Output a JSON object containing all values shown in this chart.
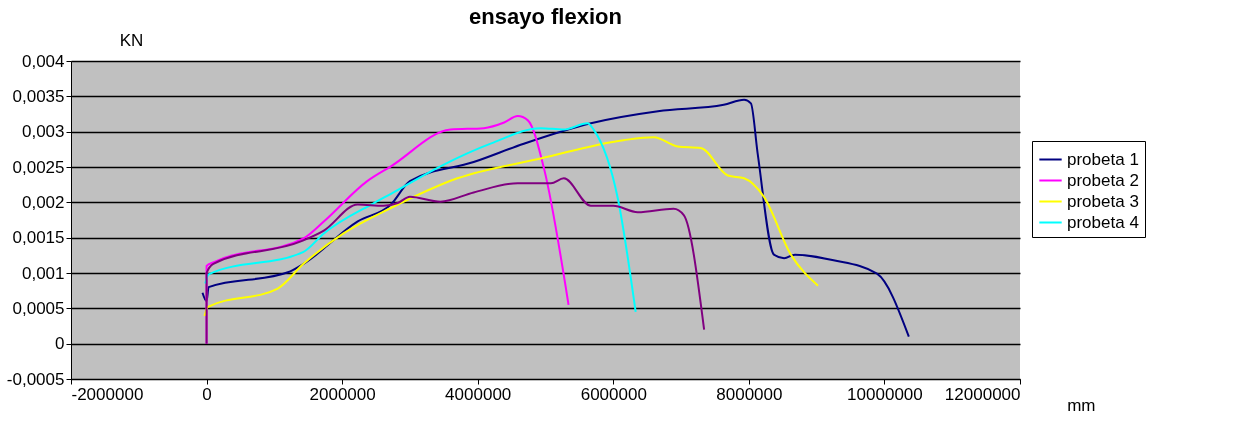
{
  "chart_data": {
    "type": "line",
    "title": "ensayo flexion",
    "xlabel": "mm",
    "ylabel": "KN",
    "xlim": [
      -2000000,
      12000000
    ],
    "xticks": [
      -2000000,
      0,
      2000000,
      4000000,
      6000000,
      8000000,
      10000000,
      12000000
    ],
    "ylim": [
      -0.0005,
      0.004
    ],
    "yticks": [
      {
        "value": -0.0005,
        "label": "-0,0005"
      },
      0,
      {
        "value": 0.0005,
        "label": "0,0005"
      },
      {
        "value": 0.001,
        "label": "0,001"
      },
      {
        "value": 0.0015,
        "label": "0,0015"
      },
      {
        "value": 0.002,
        "label": "0,002"
      },
      {
        "value": 0.0025,
        "label": "0,0025"
      },
      {
        "value": 0.003,
        "label": "0,003"
      },
      {
        "value": 0.0035,
        "label": "0,0035"
      },
      {
        "value": 0.004,
        "label": "0,004"
      }
    ],
    "grid": "y",
    "legend": "right",
    "series": [
      {
        "name": "probeta 1",
        "color": "#000080",
        "x": [
          -60000,
          0,
          30000,
          1200000,
          1430000,
          2230000,
          2720000,
          3000000,
          3940000,
          4680000,
          5670000,
          6660000,
          7630000,
          7930000,
          8030000,
          8130000,
          8370000,
          8520000,
          8680000,
          9250000,
          9890000,
          10360000
        ],
        "values": [
          0.00072,
          0.0006,
          0.0008,
          0.00101,
          0.00113,
          0.00173,
          0.00197,
          0.0023,
          0.00257,
          0.00283,
          0.00312,
          0.00329,
          0.00338,
          0.00345,
          0.0034,
          0.00269,
          0.00126,
          0.00121,
          0.00126,
          0.00118,
          0.00099,
          0.0001
        ]
      },
      {
        "name": "probeta 2",
        "color": "#ff00ff",
        "x": [
          0,
          0,
          100000,
          1430000,
          1730000,
          2370000,
          2720000,
          3600000,
          4090000,
          4390000,
          4590000,
          4740000,
          4980000,
          5340000
        ],
        "values": [
          0,
          0.0011,
          0.00115,
          0.00149,
          0.00173,
          0.0023,
          0.00251,
          0.00303,
          0.00305,
          0.00313,
          0.00322,
          0.00316,
          0.00247,
          0.00055
        ]
      },
      {
        "name": "probeta 3",
        "color": "#ffff00",
        "x": [
          -30000,
          20000,
          1050000,
          1430000,
          2020000,
          2720000,
          3700000,
          4930000,
          6150000,
          6600000,
          6950000,
          7290000,
          7690000,
          7930000,
          8220000,
          8620000,
          9020000
        ],
        "values": [
          0.00039,
          0.00052,
          0.00078,
          0.00113,
          0.00156,
          0.00192,
          0.00234,
          0.00262,
          0.00288,
          0.00292,
          0.00279,
          0.00277,
          0.00238,
          0.00234,
          0.00208,
          0.00126,
          0.00082
        ]
      },
      {
        "name": "probeta 4",
        "color": "#00ffff",
        "x": [
          -20000,
          30000,
          1430000,
          1730000,
          2470000,
          2720000,
          3450000,
          4190000,
          4930000,
          5270000,
          5620000,
          5710000,
          6070000,
          6330000
        ],
        "values": [
          0.00085,
          0.00098,
          0.0013,
          0.00156,
          0.00199,
          0.00212,
          0.00251,
          0.00283,
          0.00305,
          0.00303,
          0.00312,
          0.00303,
          0.00204,
          0.00045
        ]
      },
      {
        "color": "#800080",
        "x": [
          0,
          0,
          100000,
          1400000,
          1730000,
          2230000,
          2610000,
          2820000,
          3000000,
          3450000,
          3940000,
          4590000,
          5080000,
          5270000,
          5670000,
          6000000,
          6360000,
          6890000,
          7040000,
          7340000
        ],
        "values": [
          0,
          0.001,
          0.00113,
          0.00145,
          0.0016,
          0.00197,
          0.00195,
          0.00199,
          0.00208,
          0.00201,
          0.00214,
          0.00227,
          0.00227,
          0.00234,
          0.00195,
          0.00195,
          0.00186,
          0.00191,
          0.00182,
          0.0002
        ]
      }
    ]
  }
}
